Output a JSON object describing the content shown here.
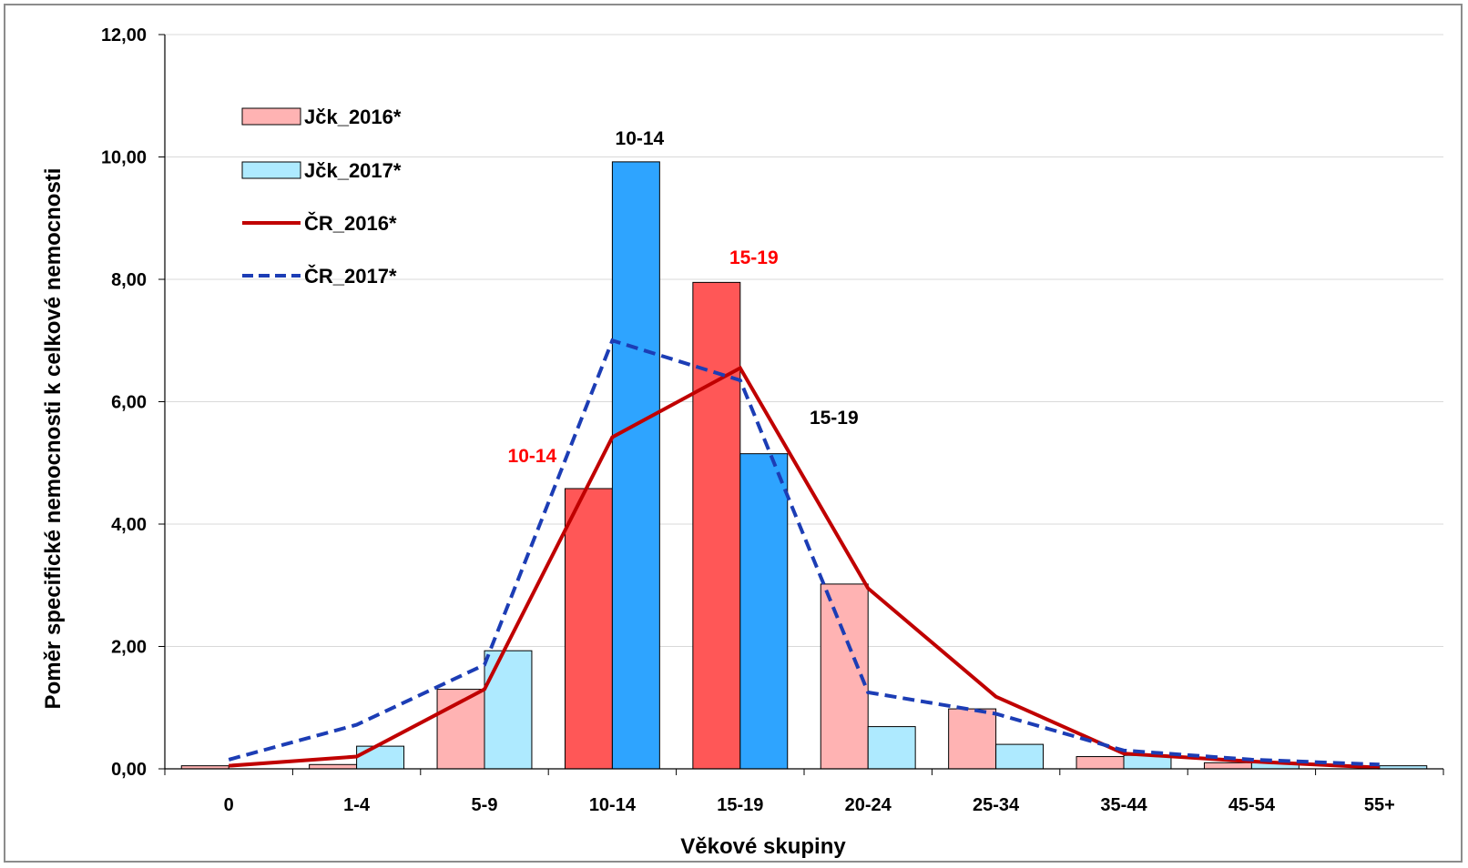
{
  "chart_data": {
    "type": "bar",
    "xlabel": "Věkové skupiny",
    "ylabel": "Poměr specifické nemocnosti k celkové nemocnosti",
    "ylim": [
      0,
      12
    ],
    "yticks": [
      "0,00",
      "2,00",
      "4,00",
      "6,00",
      "8,00",
      "10,00",
      "12,00"
    ],
    "grid": true,
    "legend_position": "top-left",
    "categories": [
      "0",
      "1-4",
      "5-9",
      "10-14",
      "15-19",
      "20-24",
      "25-34",
      "35-44",
      "45-54",
      "55+"
    ],
    "series": [
      {
        "name": "Jčk_2016*",
        "kind": "bar",
        "color": "#ffb3b3",
        "highlight_color": "#ff5757",
        "values": [
          0.05,
          0.07,
          1.3,
          4.58,
          7.95,
          3.02,
          0.98,
          0.2,
          0.1,
          0.0
        ]
      },
      {
        "name": "Jčk_2017*",
        "kind": "bar",
        "color": "#aeeaff",
        "highlight_color": "#2ea4ff",
        "values": [
          0.0,
          0.37,
          1.93,
          9.92,
          5.15,
          0.69,
          0.4,
          0.22,
          0.1,
          0.05
        ]
      },
      {
        "name": "ČR_2016*",
        "kind": "line",
        "style": "solid",
        "color": "#c00000",
        "values": [
          0.05,
          0.2,
          1.3,
          5.42,
          6.55,
          2.95,
          1.18,
          0.25,
          0.12,
          0.02
        ]
      },
      {
        "name": "ČR_2017*",
        "kind": "line",
        "style": "dashed",
        "color": "#1c3db5",
        "values": [
          0.15,
          0.72,
          1.7,
          7.0,
          6.35,
          1.25,
          0.9,
          0.3,
          0.15,
          0.07
        ]
      }
    ],
    "highlight_categories": [
      "10-14",
      "15-19"
    ],
    "annotations": [
      {
        "text": "10-14",
        "color": "#000000",
        "target": "Jčk_2017* max"
      },
      {
        "text": "15-19",
        "color": "#ff0000",
        "target": "Jčk_2016* max"
      },
      {
        "text": "10-14",
        "color": "#ff0000",
        "target": "ČR_2016* rising"
      },
      {
        "text": "15-19",
        "color": "#000000",
        "target": "ČR_2017* falling"
      }
    ]
  }
}
